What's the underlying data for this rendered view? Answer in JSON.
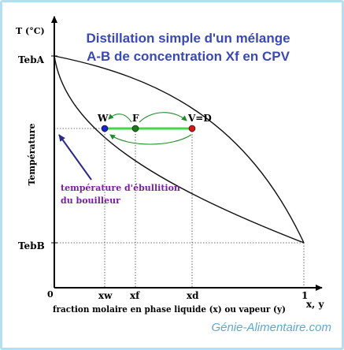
{
  "title": {
    "line1": "Distillation simple d'un mélange",
    "line2": "A-B de concentration Xf en CPV",
    "color": "#3a49b4"
  },
  "axes": {
    "y_unit": "T (°C)",
    "y_title": "Température",
    "x_title": "fraction molaire en phase liquide (x) ou vapeur (y)",
    "x_end_label": "x, y",
    "origin": "0",
    "x_max": "1"
  },
  "labels": {
    "teb_a": "TebA",
    "teb_b": "TebB",
    "point_w": "W",
    "point_f": "F",
    "point_v": "V=D",
    "xw": "xw",
    "xf": "xf",
    "xd": "xd"
  },
  "annotation": {
    "line1": "température d'ébullition",
    "line2": "du bouilleur",
    "color": "#7a1fa0"
  },
  "watermark": "Génie-Alimentaire.com",
  "colors": {
    "point_w": "#1a22cc",
    "point_f": "#1b7a1b",
    "point_v": "#d01a1a",
    "tie_line": "#43d84a",
    "arrows": "#1e8c2a"
  }
}
